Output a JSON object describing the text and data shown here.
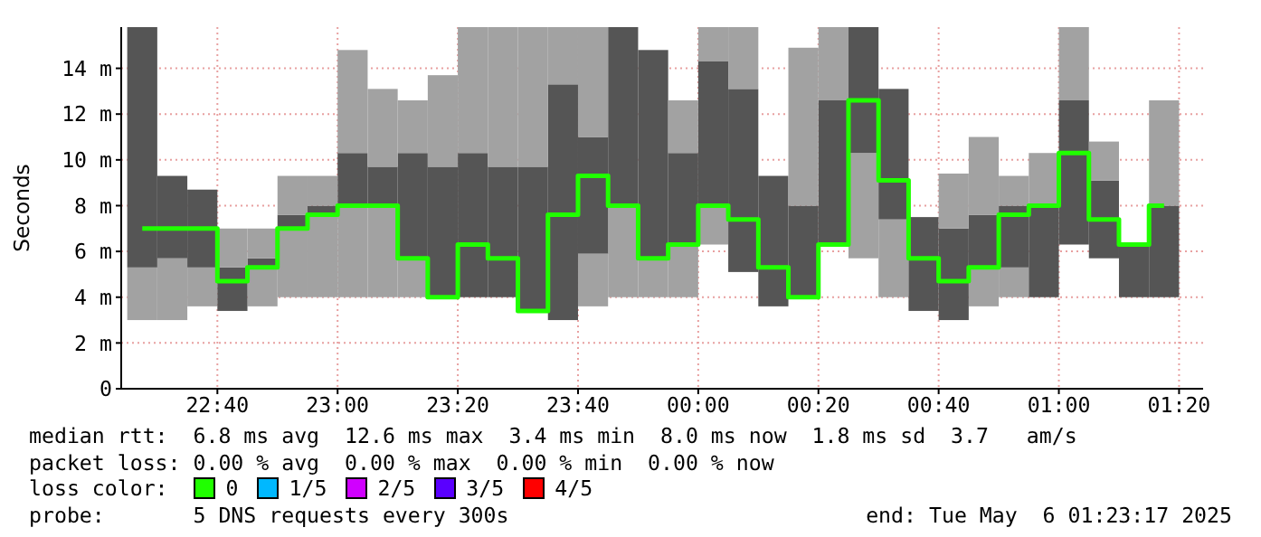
{
  "chart_data": {
    "type": "bar",
    "ylabel": "Seconds",
    "legend_title": "loss color:",
    "legend": "bottom",
    "grid": true,
    "x": [
      "2025-05-05T22:27:30",
      "2025-05-05T22:32:30",
      "2025-05-05T22:37:30",
      "2025-05-05T22:42:30",
      "2025-05-05T22:47:30",
      "2025-05-05T22:52:30",
      "2025-05-05T22:57:30",
      "2025-05-05T23:02:30",
      "2025-05-05T23:07:30",
      "2025-05-05T23:12:30",
      "2025-05-05T23:17:30",
      "2025-05-05T23:22:30",
      "2025-05-05T23:27:30",
      "2025-05-05T23:32:30",
      "2025-05-05T23:37:30",
      "2025-05-05T23:42:30",
      "2025-05-05T23:47:30",
      "2025-05-05T23:52:30",
      "2025-05-05T23:57:30",
      "2025-05-06T00:02:30",
      "2025-05-06T00:07:30",
      "2025-05-06T00:12:30",
      "2025-05-06T00:17:30",
      "2025-05-06T00:22:30",
      "2025-05-06T00:27:30",
      "2025-05-06T00:32:30",
      "2025-05-06T00:37:30",
      "2025-05-06T00:42:30",
      "2025-05-06T00:47:30",
      "2025-05-06T00:52:30",
      "2025-05-06T00:57:30",
      "2025-05-06T01:02:30",
      "2025-05-06T01:07:30",
      "2025-05-06T01:12:30",
      "2025-05-06T01:17:30"
    ],
    "series": [
      {
        "color": "#a2a2a2",
        "base": [
          3.0,
          3.0,
          3.6,
          null,
          3.6,
          4.0,
          4.0,
          4.0,
          4.0,
          4.0,
          null,
          null,
          null,
          null,
          null,
          3.6,
          4.0,
          4.0,
          4.0,
          6.3,
          null,
          null,
          null,
          null,
          5.7,
          4.0,
          null,
          null,
          3.6,
          4.0,
          null,
          null,
          null,
          null,
          null
        ],
        "values": [
          2.3,
          2.7,
          1.7,
          null,
          1.7,
          3.0,
          3.6,
          4.0,
          4.0,
          1.7,
          null,
          null,
          null,
          null,
          null,
          2.3,
          4.0,
          1.7,
          2.2,
          1.7,
          null,
          null,
          null,
          null,
          4.6,
          3.4,
          null,
          null,
          1.7,
          1.3,
          null,
          null,
          null,
          null,
          null
        ]
      },
      {
        "color": "#555555",
        "base": [
          5.3,
          5.7,
          5.3,
          3.4,
          5.3,
          7.0,
          7.6,
          8.0,
          8.0,
          5.7,
          4.0,
          4.0,
          4.0,
          3.4,
          3.0,
          5.9,
          8.0,
          5.7,
          6.2,
          8.0,
          5.1,
          3.6,
          4.0,
          6.3,
          10.3,
          7.4,
          3.4,
          3.0,
          5.3,
          5.3,
          4.0,
          6.3,
          5.7,
          4.0,
          4.0
        ],
        "values": [
          10.5,
          3.6,
          3.4,
          1.9,
          0.4,
          0.6,
          0.4,
          2.3,
          1.7,
          4.6,
          5.7,
          6.3,
          5.7,
          6.3,
          10.3,
          5.1,
          7.8,
          9.1,
          4.1,
          6.3,
          8.0,
          5.7,
          4.0,
          6.3,
          5.5,
          5.7,
          4.1,
          4.0,
          2.3,
          2.7,
          4.0,
          6.3,
          3.4,
          2.3,
          4.0
        ]
      },
      {
        "color": "#a2a2a2",
        "base": [
          null,
          null,
          null,
          5.3,
          5.7,
          7.6,
          8.0,
          10.3,
          9.7,
          10.3,
          9.7,
          10.3,
          9.7,
          9.7,
          13.3,
          11.0,
          null,
          null,
          10.3,
          14.3,
          13.1,
          null,
          8.0,
          12.6,
          null,
          null,
          null,
          7.0,
          7.6,
          8.0,
          8.0,
          12.6,
          9.1,
          null,
          8.0
        ],
        "values": [
          null,
          null,
          null,
          1.7,
          1.3,
          1.7,
          1.3,
          4.5,
          3.4,
          2.3,
          4.0,
          5.5,
          6.1,
          6.1,
          2.5,
          4.8,
          null,
          null,
          2.3,
          1.5,
          2.7,
          null,
          6.9,
          3.2,
          null,
          null,
          null,
          2.4,
          3.4,
          1.3,
          2.3,
          3.2,
          1.7,
          null,
          4.6
        ]
      },
      {
        "name": "0",
        "type": "step",
        "color": "#20ff00",
        "values": [
          7.0,
          7.0,
          7.0,
          4.7,
          5.3,
          7.0,
          7.6,
          8.0,
          8.0,
          5.7,
          4.0,
          6.3,
          5.7,
          3.4,
          7.6,
          9.3,
          8.0,
          5.7,
          6.3,
          8.0,
          7.4,
          5.3,
          4.0,
          6.3,
          12.6,
          9.1,
          5.7,
          4.7,
          5.3,
          7.6,
          8.0,
          10.3,
          7.4,
          6.3,
          8.0
        ]
      },
      {
        "name": "1/5",
        "type": "step",
        "color": "#00b8ff",
        "values": [
          null,
          null,
          null,
          null,
          null,
          null,
          null,
          null,
          null,
          null,
          null,
          null,
          null,
          null,
          null,
          null,
          null,
          null,
          null,
          null,
          null,
          null,
          null,
          null,
          null,
          null,
          null,
          null,
          null,
          null,
          null,
          null,
          null,
          null,
          null
        ]
      },
      {
        "name": "2/5",
        "type": "step",
        "color": "#d000ff",
        "values": [
          null,
          null,
          null,
          null,
          null,
          null,
          null,
          null,
          null,
          null,
          null,
          null,
          null,
          null,
          null,
          null,
          null,
          null,
          null,
          null,
          null,
          null,
          null,
          null,
          null,
          null,
          null,
          null,
          null,
          null,
          null,
          null,
          null,
          null,
          null
        ]
      },
      {
        "name": "3/5",
        "type": "step",
        "color": "#5a00ff",
        "values": [
          null,
          null,
          null,
          null,
          null,
          null,
          null,
          null,
          null,
          null,
          null,
          null,
          null,
          null,
          null,
          null,
          null,
          null,
          null,
          null,
          null,
          null,
          null,
          null,
          null,
          null,
          null,
          null,
          null,
          null,
          null,
          null,
          null,
          null,
          null
        ]
      },
      {
        "name": "4/5",
        "type": "step",
        "color": "#ff0000",
        "values": [
          null,
          null,
          null,
          null,
          null,
          null,
          null,
          null,
          null,
          null,
          null,
          null,
          null,
          null,
          null,
          null,
          null,
          null,
          null,
          null,
          null,
          null,
          null,
          null,
          null,
          null,
          null,
          null,
          null,
          null,
          null,
          null,
          null,
          null,
          null
        ]
      }
    ],
    "xlim": [
      "2025-05-05T22:24",
      "2025-05-06T01:24"
    ],
    "xticks": [
      {
        "value": "2025-05-05T22:40",
        "label": "22:40"
      },
      {
        "value": "2025-05-05T23:00",
        "label": "23:00"
      },
      {
        "value": "2025-05-05T23:20",
        "label": "23:20"
      },
      {
        "value": "2025-05-05T23:40",
        "label": "23:40"
      },
      {
        "value": "2025-05-06T00:00",
        "label": "00:00"
      },
      {
        "value": "2025-05-06T00:20",
        "label": "00:20"
      },
      {
        "value": "2025-05-06T00:40",
        "label": "00:40"
      },
      {
        "value": "2025-05-06T01:00",
        "label": "01:00"
      },
      {
        "value": "2025-05-06T01:20",
        "label": "01:20"
      }
    ],
    "ylim": [
      0,
      15.8
    ],
    "yticks": [
      0,
      {
        "value": 2,
        "label": "2 m"
      },
      {
        "value": 4,
        "label": "4 m"
      },
      {
        "value": 6,
        "label": "6 m"
      },
      {
        "value": 8,
        "label": "8 m"
      },
      {
        "value": 10,
        "label": "10 m"
      },
      {
        "value": 12,
        "label": "12 m"
      },
      {
        "value": 14,
        "label": "14 m"
      }
    ],
    "annotations": [
      "median rtt:  6.8 ms avg  12.6 ms max  3.4 ms min  8.0 ms now  1.8 ms sd  3.7   am/s",
      "packet loss: 0.00 % avg  0.00 % max  0.00 % min  0.00 % now",
      "probe:       5 DNS requests every 300s",
      "end: Tue May  6 01:23:17 2025"
    ]
  }
}
